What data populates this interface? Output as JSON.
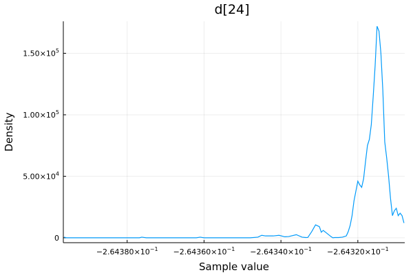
{
  "chart_data": {
    "type": "line",
    "title": "d[24]",
    "xlabel": "Sample value",
    "ylabel": "Density",
    "xlim": [
      -0.2643966,
      -0.2643078
    ],
    "ylim": [
      -4000,
      176000
    ],
    "grid": true,
    "legend": "none",
    "line_color": "#009AFA",
    "x_ticks": [
      {
        "value": -0.26438,
        "mantissa": "−2.64380",
        "base": "×10",
        "exp": "−1"
      },
      {
        "value": -0.26436,
        "mantissa": "−2.64360",
        "base": "×10",
        "exp": "−1"
      },
      {
        "value": -0.26434,
        "mantissa": "−2.64340",
        "base": "×10",
        "exp": "−1"
      },
      {
        "value": -0.26432,
        "mantissa": "−2.64320",
        "base": "×10",
        "exp": "−1"
      }
    ],
    "y_ticks": [
      {
        "value": 0,
        "mantissa": "0",
        "base": "",
        "exp": ""
      },
      {
        "value": 50000,
        "mantissa": "5.00",
        "base": "×10",
        "exp": "4"
      },
      {
        "value": 100000,
        "mantissa": "1.00",
        "base": "×10",
        "exp": "5"
      },
      {
        "value": 150000,
        "mantissa": "1.50",
        "base": "×10",
        "exp": "5"
      }
    ],
    "series": [
      {
        "x": [
          -0.2643964,
          -0.2643958,
          -0.264395,
          -0.264394,
          -0.264392,
          -0.26439,
          -0.264388,
          -0.264386,
          -0.264384,
          -0.264382,
          -0.26438,
          -0.264378,
          -0.2643768,
          -0.2643762,
          -0.264375,
          -0.264372,
          -0.26437,
          -0.264368,
          -0.264366,
          -0.264364,
          -0.264362,
          -0.264361,
          -0.26436,
          -0.264358,
          -0.264356,
          -0.264354,
          -0.264352,
          -0.26435,
          -0.264348,
          -0.264346,
          -0.264345,
          -0.264344,
          -0.264342,
          -0.2643405,
          -0.264339,
          -0.264338,
          -0.264336,
          -0.2643345,
          -0.2643335,
          -0.264333,
          -0.264332,
          -0.264331,
          -0.26433,
          -0.2643295,
          -0.264329,
          -0.264328,
          -0.264327,
          -0.2643265,
          -0.264326,
          -0.264325,
          -0.264324,
          -0.264323,
          -0.2643225,
          -0.264322,
          -0.2643215,
          -0.264321,
          -0.2643205,
          -0.26432,
          -0.2643195,
          -0.264319,
          -0.2643185,
          -0.264318,
          -0.2643175,
          -0.264317,
          -0.2643165,
          -0.264316,
          -0.2643155,
          -0.264315,
          -0.2643145,
          -0.264314,
          -0.2643135,
          -0.264313,
          -0.2643125,
          -0.264312,
          -0.2643115,
          -0.264311,
          -0.2643105,
          -0.26431,
          -0.2643095,
          -0.264309,
          -0.2643085,
          -0.264308
        ],
        "y": [
          500,
          0,
          0,
          0,
          0,
          0,
          0,
          0,
          0,
          0,
          0,
          0,
          0,
          500,
          0,
          0,
          0,
          0,
          0,
          0,
          0,
          500,
          0,
          0,
          0,
          0,
          0,
          0,
          0,
          500,
          2000,
          1500,
          1500,
          2000,
          800,
          1000,
          2500,
          500,
          200,
          300,
          5000,
          10500,
          9000,
          4500,
          6000,
          3500,
          1000,
          0,
          200,
          200,
          500,
          1500,
          5000,
          10000,
          18000,
          30000,
          38000,
          46000,
          43000,
          41000,
          48000,
          62000,
          75000,
          80000,
          92000,
          115000,
          140000,
          172000,
          168000,
          150000,
          120000,
          78000,
          65000,
          50000,
          32000,
          18000,
          22000,
          24000,
          18000,
          20000,
          18000,
          12000
        ]
      }
    ]
  }
}
